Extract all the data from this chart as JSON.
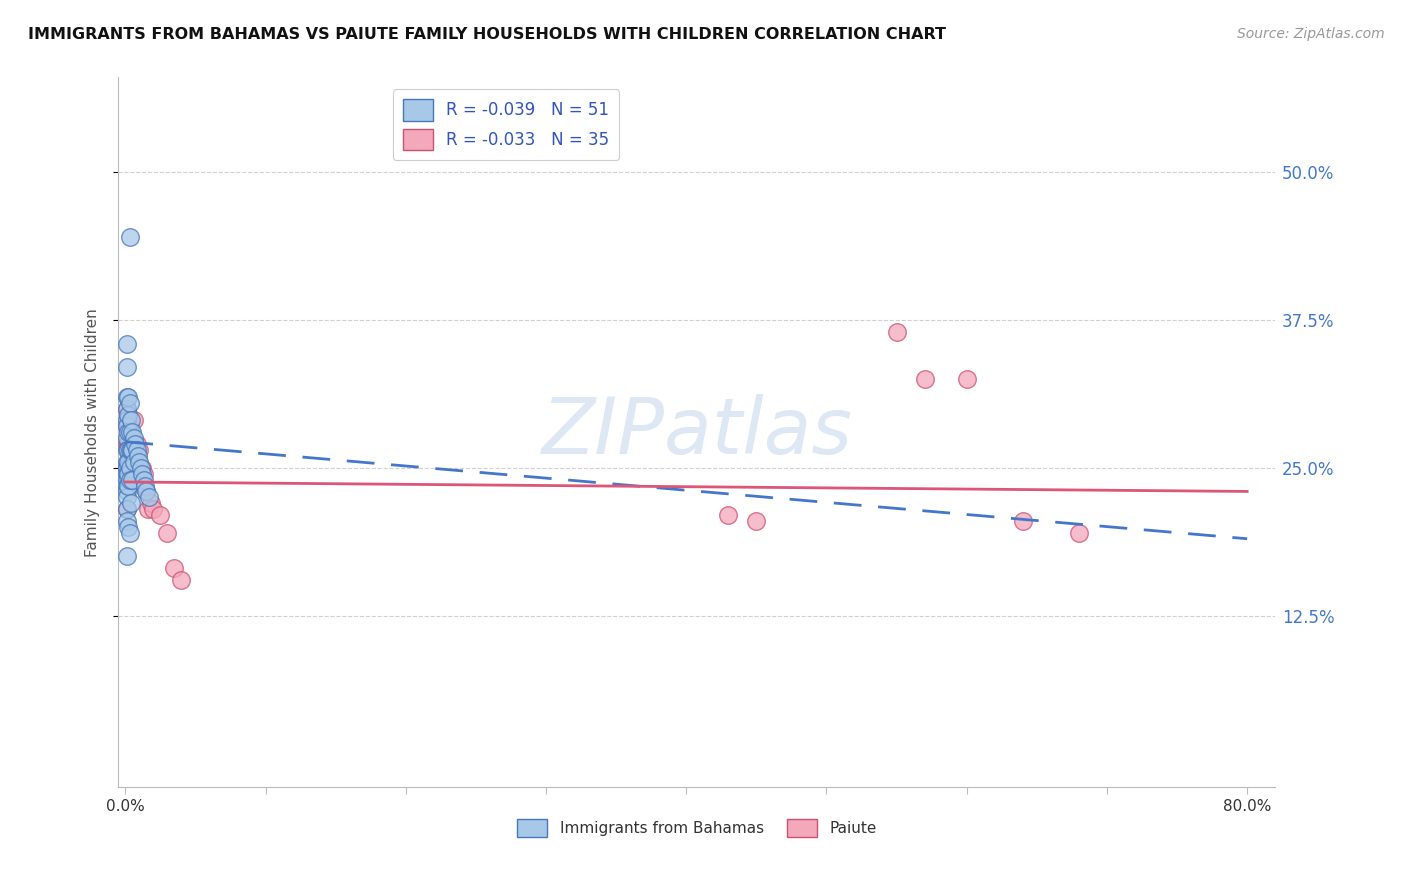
{
  "title": "IMMIGRANTS FROM BAHAMAS VS PAIUTE FAMILY HOUSEHOLDS WITH CHILDREN CORRELATION CHART",
  "source": "Source: ZipAtlas.com",
  "ylabel": "Family Households with Children",
  "ytick_vals": [
    0.125,
    0.25,
    0.375,
    0.5
  ],
  "ytick_labels": [
    "12.5%",
    "25.0%",
    "37.5%",
    "50.0%"
  ],
  "legend_bottom": [
    "Immigrants from Bahamas",
    "Paiute"
  ],
  "watermark": "ZIPatlas",
  "blue_face": "#a8c8e8",
  "blue_edge": "#4477bb",
  "pink_face": "#f4a8bc",
  "pink_edge": "#d05070",
  "blue_line": "#4477cc",
  "pink_line": "#dd5577",
  "xlim": [
    0.0,
    0.8
  ],
  "ylim": [
    0.0,
    0.55
  ],
  "bahamas_x": [
    0.001,
    0.001,
    0.001,
    0.001,
    0.001,
    0.001,
    0.001,
    0.001,
    0.001,
    0.001,
    0.001,
    0.001,
    0.001,
    0.001,
    0.001,
    0.001,
    0.001,
    0.001,
    0.002,
    0.002,
    0.002,
    0.002,
    0.002,
    0.002,
    0.002,
    0.002,
    0.003,
    0.003,
    0.003,
    0.003,
    0.003,
    0.003,
    0.004,
    0.004,
    0.004,
    0.005,
    0.005,
    0.005,
    0.006,
    0.006,
    0.007,
    0.008,
    0.009,
    0.01,
    0.011,
    0.012,
    0.013,
    0.014,
    0.015,
    0.017,
    0.003
  ],
  "bahamas_y": [
    0.355,
    0.335,
    0.31,
    0.3,
    0.29,
    0.285,
    0.275,
    0.265,
    0.255,
    0.25,
    0.245,
    0.24,
    0.235,
    0.23,
    0.225,
    0.215,
    0.205,
    0.175,
    0.31,
    0.295,
    0.28,
    0.265,
    0.255,
    0.245,
    0.235,
    0.2,
    0.305,
    0.28,
    0.265,
    0.25,
    0.24,
    0.195,
    0.29,
    0.265,
    0.22,
    0.28,
    0.265,
    0.24,
    0.275,
    0.255,
    0.27,
    0.265,
    0.26,
    0.255,
    0.25,
    0.245,
    0.24,
    0.235,
    0.23,
    0.225,
    0.445
  ],
  "paiute_x": [
    0.001,
    0.001,
    0.001,
    0.001,
    0.001,
    0.002,
    0.002,
    0.002,
    0.003,
    0.003,
    0.004,
    0.005,
    0.006,
    0.006,
    0.007,
    0.008,
    0.009,
    0.01,
    0.012,
    0.013,
    0.015,
    0.016,
    0.018,
    0.02,
    0.025,
    0.03,
    0.035,
    0.04,
    0.43,
    0.45,
    0.55,
    0.57,
    0.6,
    0.64,
    0.68
  ],
  "paiute_y": [
    0.3,
    0.285,
    0.27,
    0.25,
    0.215,
    0.295,
    0.27,
    0.24,
    0.285,
    0.255,
    0.27,
    0.26,
    0.29,
    0.25,
    0.255,
    0.27,
    0.255,
    0.265,
    0.25,
    0.245,
    0.23,
    0.215,
    0.22,
    0.215,
    0.21,
    0.195,
    0.165,
    0.155,
    0.21,
    0.205,
    0.365,
    0.325,
    0.325,
    0.205,
    0.195
  ],
  "blue_line_x": [
    0.0,
    0.8
  ],
  "blue_line_y": [
    0.272,
    0.19
  ],
  "pink_line_x": [
    0.0,
    0.8
  ],
  "pink_line_y": [
    0.238,
    0.23
  ],
  "legend1_labels": [
    "R = -0.039   N = 51",
    "R = -0.033   N = 35"
  ]
}
